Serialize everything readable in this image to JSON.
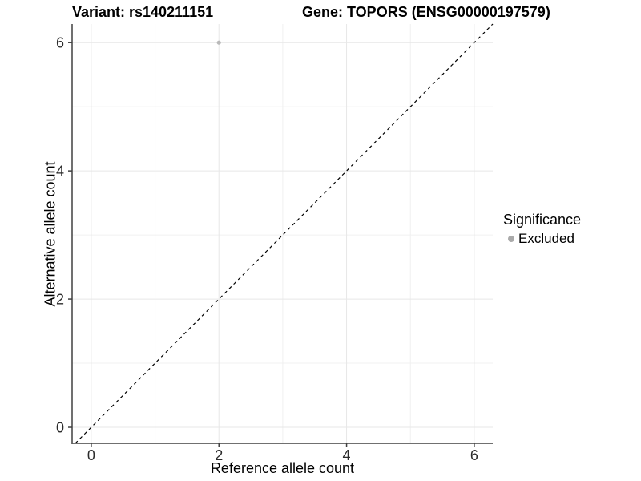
{
  "chart_data": {
    "type": "scatter",
    "title_left": "Variant: rs140211151",
    "title_right": "Gene: TOPORS (ENSG00000197579)",
    "xlabel": "Reference allele count",
    "ylabel": "Alternative allele count",
    "xlim": [
      -0.3,
      6.29
    ],
    "ylim": [
      -0.25,
      6.29
    ],
    "x_ticks": [
      0,
      2,
      4,
      6
    ],
    "y_ticks": [
      0,
      2,
      4,
      6
    ],
    "x_minor_ticks": [
      1,
      3,
      5
    ],
    "y_minor_ticks": [
      1,
      3,
      5
    ],
    "grid": true,
    "reference_line": {
      "kind": "identity",
      "slope": 1,
      "intercept": 0,
      "style": "dashed",
      "color": "#000000"
    },
    "series": [
      {
        "name": "Excluded",
        "color": "#b9b9b9",
        "points": [
          {
            "x": 2,
            "y": 6
          }
        ]
      }
    ],
    "legend": {
      "title": "Significance",
      "position": "right",
      "items": [
        {
          "label": "Excluded",
          "color": "#aaaaaa"
        }
      ]
    },
    "colors": {
      "background": "#ffffff",
      "grid_major": "#e7e7e7",
      "grid_minor": "#f0f0f0",
      "axis": "#404040",
      "tick_label": "#2b2b2b"
    }
  }
}
